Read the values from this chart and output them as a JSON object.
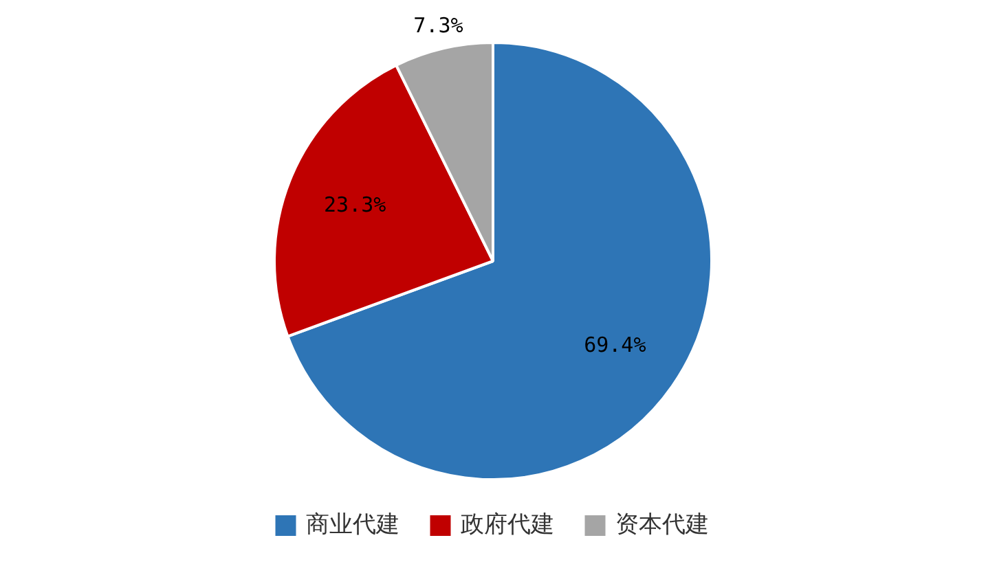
{
  "chart_data": {
    "type": "pie",
    "categories": [
      "商业代建",
      "政府代建",
      "资本代建"
    ],
    "values": [
      69.4,
      23.3,
      7.3
    ],
    "colors": [
      "#2e75b6",
      "#c00000",
      "#a5a5a5"
    ],
    "value_labels": [
      "69.4%",
      "23.3%",
      "7.3%"
    ],
    "legend": "bottom"
  }
}
